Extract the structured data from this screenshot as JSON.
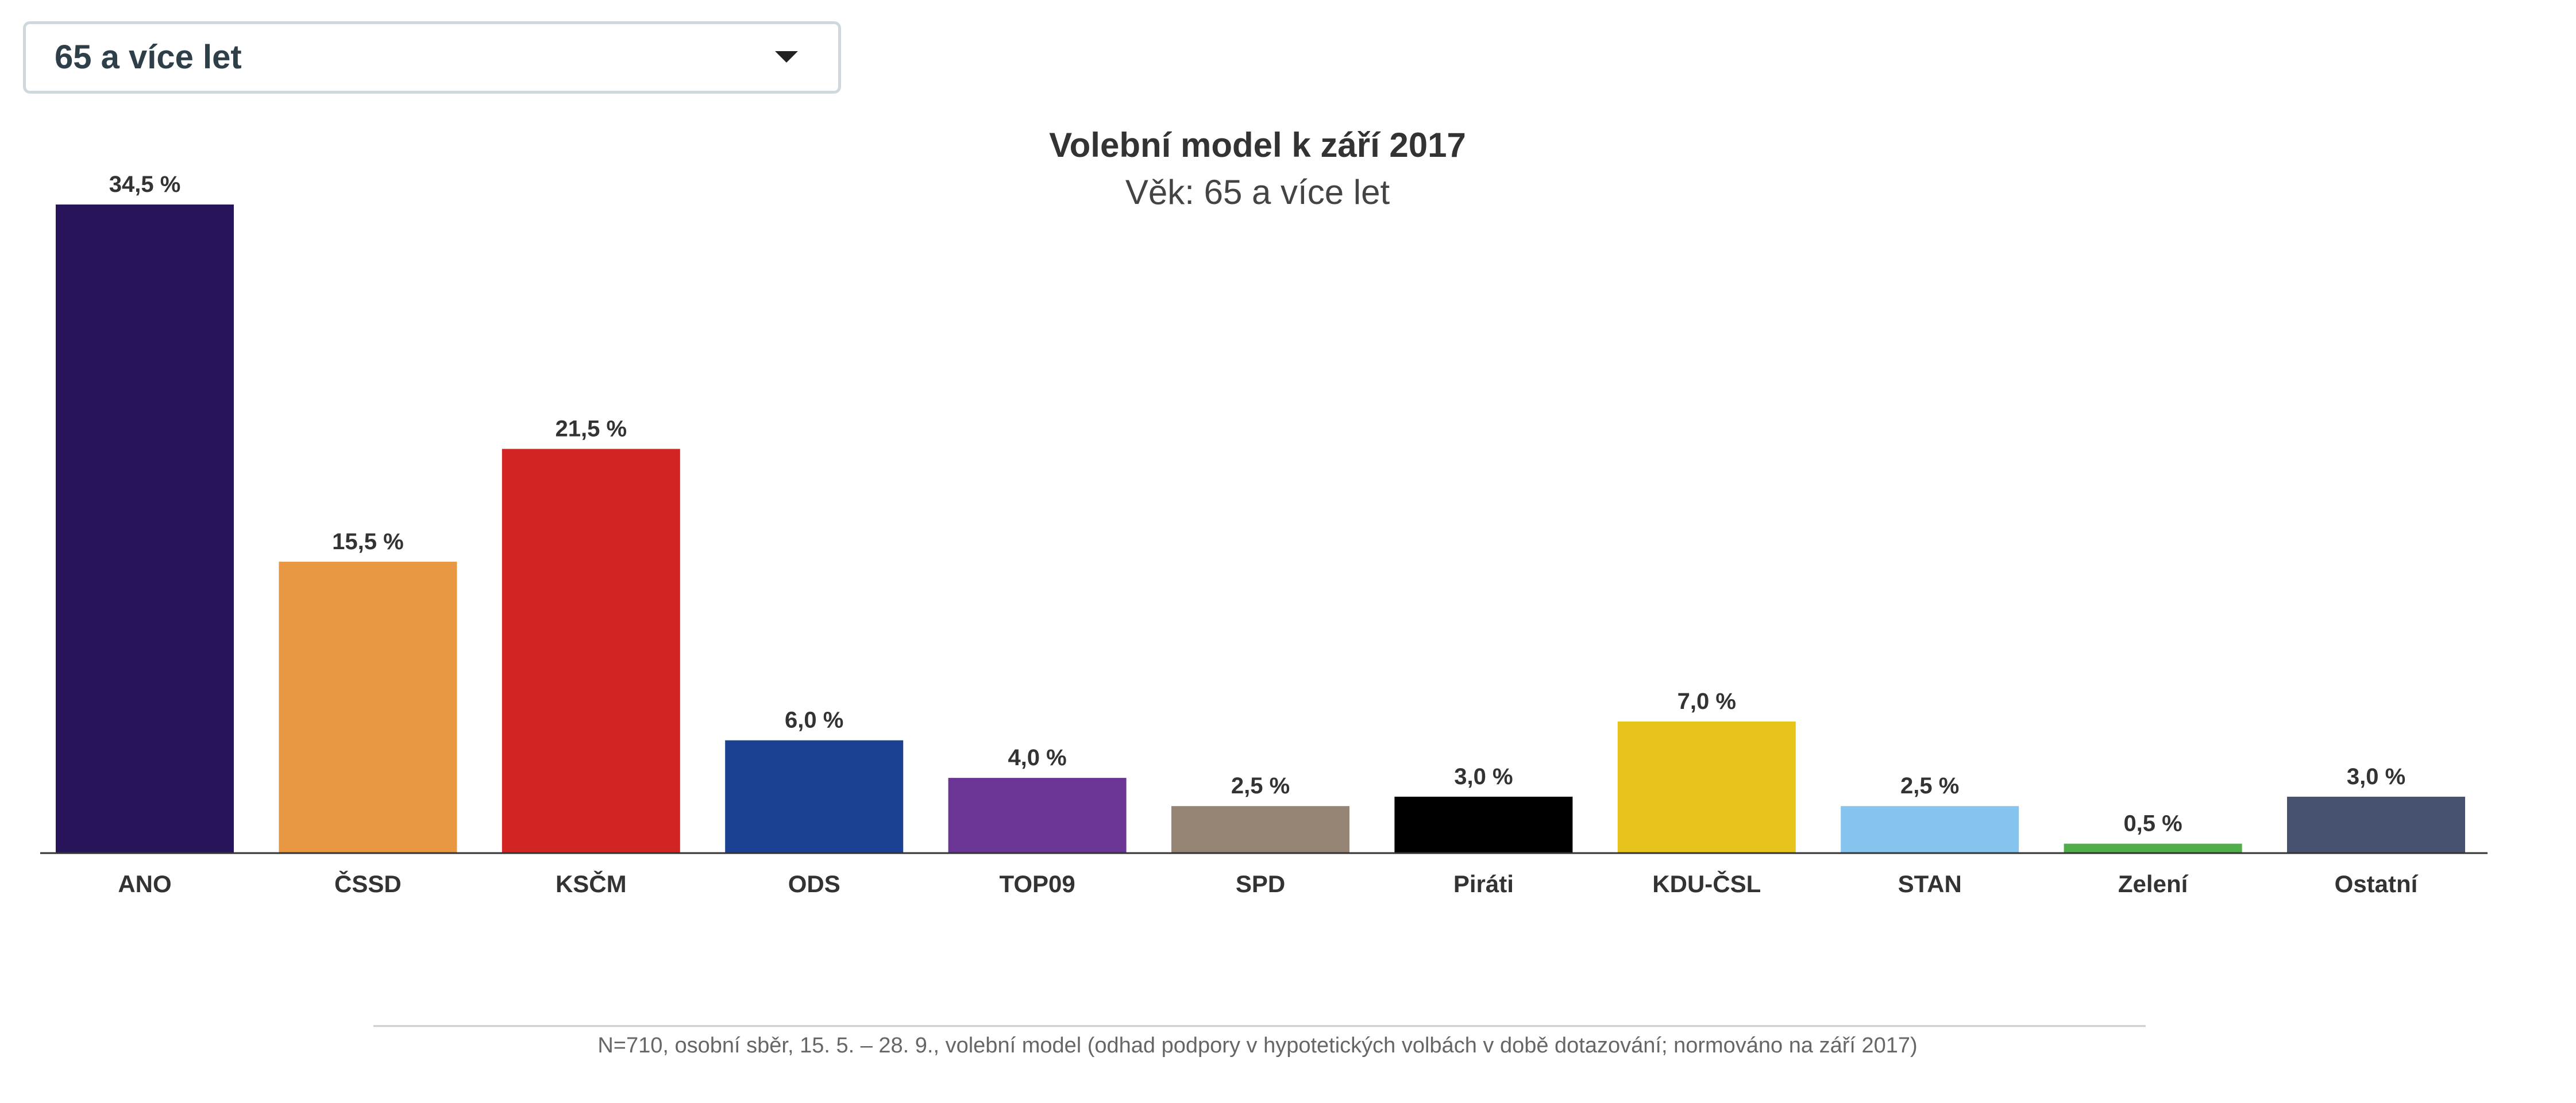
{
  "filter": {
    "selected": "65 a více let"
  },
  "chart_data": {
    "type": "bar",
    "title": "Volební model k září 2017",
    "subtitle": "Věk: 65 a více let",
    "categories": [
      "ANO",
      "ČSSD",
      "KSČM",
      "ODS",
      "TOP09",
      "SPD",
      "Piráti",
      "KDU-ČSL",
      "STAN",
      "Zelení",
      "Ostatní"
    ],
    "values": [
      34.5,
      15.5,
      21.5,
      6.0,
      4.0,
      2.5,
      3.0,
      7.0,
      2.5,
      0.5,
      3.0
    ],
    "value_labels": [
      "34,5 %",
      "15,5 %",
      "21,5 %",
      "6,0 %",
      "4,0 %",
      "2,5 %",
      "3,0 %",
      "7,0 %",
      "2,5 %",
      "0,5 %",
      "3,0 %"
    ],
    "colors": [
      "#27145a",
      "#e89743",
      "#d32424",
      "#1a4192",
      "#6b3595",
      "#958373",
      "#000000",
      "#e7c41b",
      "#85c4ee",
      "#4fae49",
      "#46526e"
    ],
    "ylim": [
      0,
      36
    ],
    "grid": false,
    "legend": "none",
    "footnote": "N=710, osobní sběr, 15. 5. – 28. 9., volební model (odhad podpory v hypotetických volbách v době dotazování; normováno na září 2017)"
  }
}
